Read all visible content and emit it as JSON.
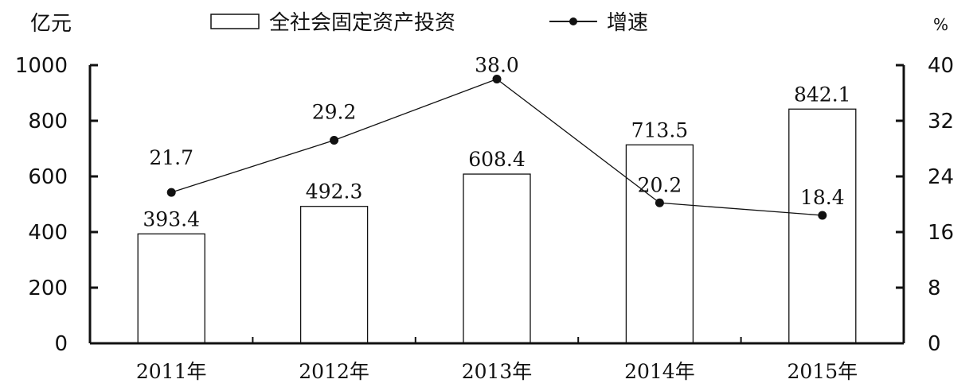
{
  "chart_data": {
    "type": "bar+line",
    "categories": [
      "2011年",
      "2012年",
      "2013年",
      "2014年",
      "2015年"
    ],
    "series": [
      {
        "name": "全社会固定资产投资",
        "type": "bar",
        "axis": "left",
        "values": [
          393.4,
          492.3,
          608.4,
          713.5,
          842.1
        ],
        "labels": [
          "393.4",
          "492.3",
          "608.4",
          "713.5",
          "842.1"
        ]
      },
      {
        "name": "增速",
        "type": "line",
        "axis": "right",
        "values": [
          21.7,
          29.2,
          38.0,
          20.2,
          18.4
        ],
        "labels": [
          "21.7",
          "29.2",
          "38.0",
          "20.2",
          "18.4"
        ]
      }
    ],
    "ylabel_left": "亿元",
    "ylabel_right": "%",
    "ylim_left": [
      0,
      1000
    ],
    "ylim_right": [
      0,
      40
    ],
    "yticks_left": [
      "0",
      "200",
      "400",
      "600",
      "800",
      "1000"
    ],
    "yticks_right": [
      "0",
      "8",
      "16",
      "24",
      "32",
      "40"
    ],
    "grid": false,
    "legend_position": "top"
  }
}
